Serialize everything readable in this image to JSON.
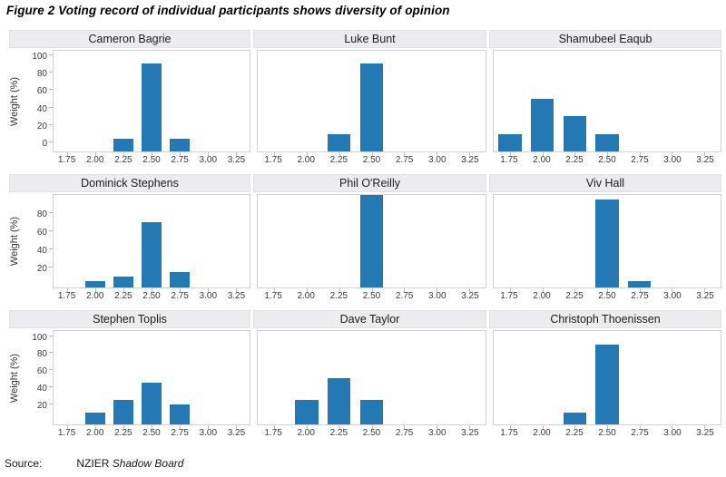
{
  "title": "Figure 2 Voting record of individual participants shows diversity of opinion",
  "source": {
    "label": "Source:",
    "org": "NZIER",
    "publication": "Shadow Board"
  },
  "colors": {
    "bar": "#2478b4",
    "panel_header_bg": "#ececee",
    "plot_border": "#d2d2d6",
    "tick": "#bdbdbd",
    "text": "#1a1a1a"
  },
  "chart_data": {
    "type": "bar",
    "layout": "3x3-small-multiples",
    "categories": [
      "1.75",
      "2.00",
      "2.25",
      "2.50",
      "2.75",
      "3.00",
      "3.25"
    ],
    "xlabel": "",
    "ylabel": "Weight (%)",
    "grid": "off",
    "legend": "none",
    "rows": [
      {
        "yticks": [
          0,
          20,
          40,
          60,
          80,
          100
        ],
        "ylim": [
          -10,
          105
        ]
      },
      {
        "yticks": [
          20,
          40,
          60,
          80
        ],
        "ylim": [
          -2,
          100
        ]
      },
      {
        "yticks": [
          20,
          40,
          60,
          80,
          100
        ],
        "ylim": [
          -4,
          106
        ]
      }
    ],
    "panels": [
      {
        "title": "Cameron Bagrie",
        "row": 0,
        "values": [
          0,
          0,
          5,
          90,
          5,
          0,
          0
        ]
      },
      {
        "title": "Luke Bunt",
        "row": 0,
        "values": [
          0,
          0,
          10,
          90,
          0,
          0,
          0
        ]
      },
      {
        "title": "Shamubeel Eaqub",
        "row": 0,
        "values": [
          10,
          50,
          30,
          10,
          0,
          0,
          0
        ]
      },
      {
        "title": "Dominick Stephens",
        "row": 1,
        "values": [
          0,
          5,
          10,
          70,
          15,
          0,
          0
        ]
      },
      {
        "title": "Phil O'Reilly",
        "row": 1,
        "values": [
          0,
          0,
          0,
          100,
          0,
          0,
          0
        ]
      },
      {
        "title": "Viv Hall",
        "row": 1,
        "values": [
          0,
          0,
          0,
          95,
          5,
          0,
          0
        ]
      },
      {
        "title": "Stephen Toplis",
        "row": 2,
        "values": [
          0,
          10,
          25,
          45,
          20,
          0,
          0
        ]
      },
      {
        "title": "Dave Taylor",
        "row": 2,
        "values": [
          0,
          25,
          50,
          25,
          0,
          0,
          0
        ]
      },
      {
        "title": "Christoph Thoenissen",
        "row": 2,
        "values": [
          0,
          0,
          10,
          90,
          0,
          0,
          0
        ]
      }
    ]
  }
}
